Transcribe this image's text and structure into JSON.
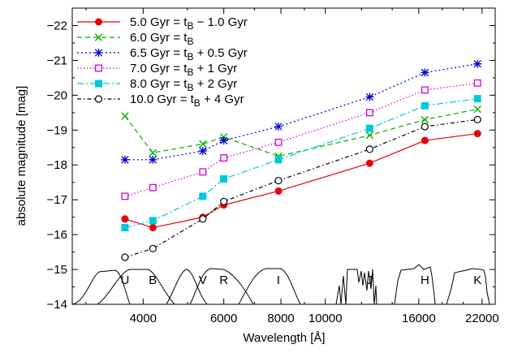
{
  "chart_data": {
    "type": "line",
    "xlabel": "Wavelength [Å]",
    "ylabel": "absolute magnitude [mag]",
    "xscale": "log",
    "xlim": [
      2800,
      23500
    ],
    "ylim": [
      -14,
      -22.5
    ],
    "y_inverted": true,
    "grid": false,
    "legend_position": "top-left",
    "x_ticks": [
      4000,
      6000,
      8000,
      10000,
      16000,
      22000
    ],
    "x_tick_labels": [
      "4000",
      "6000",
      "8000",
      "10000",
      "16000",
      "22000"
    ],
    "y_ticks": [
      -14,
      -15,
      -16,
      -17,
      -18,
      -19,
      -20,
      -21,
      -22
    ],
    "y_tick_labels": [
      "−14",
      "−15",
      "−16",
      "−17",
      "−18",
      "−19",
      "−20",
      "−21",
      "−22"
    ],
    "bands": [
      "U",
      "B",
      "V",
      "R",
      "I",
      "J",
      "H",
      "K"
    ],
    "x": [
      3650,
      4200,
      5400,
      6000,
      7900,
      12500,
      16500,
      21500
    ],
    "series": [
      {
        "name_main": "5.0 Gyr = t",
        "name_sub": "B",
        "name_suffix": " − 1.0 Gyr",
        "color": "#e8000b",
        "dash": "",
        "marker": "filled-circle",
        "values": [
          -16.45,
          -16.2,
          -16.5,
          -16.85,
          -17.25,
          -18.05,
          -18.7,
          -18.9
        ]
      },
      {
        "name_main": "6.0 Gyr = t",
        "name_sub": "B",
        "name_suffix": "",
        "color": "#00b000",
        "dash": "6,4",
        "marker": "x",
        "values": [
          -19.4,
          -18.35,
          -18.6,
          -18.8,
          -18.25,
          -18.85,
          -19.3,
          -19.6
        ]
      },
      {
        "name_main": "6.5 Gyr = t",
        "name_sub": "B",
        "name_suffix": " + 0.5 Gyr",
        "color": "#0000d0",
        "dash": "2,3",
        "marker": "star",
        "values": [
          -18.15,
          -18.15,
          -18.4,
          -18.7,
          -19.1,
          -19.95,
          -20.65,
          -20.9
        ]
      },
      {
        "name_main": "7.0 Gyr = t",
        "name_sub": "B",
        "name_suffix": " + 1 Gyr",
        "color": "#d000d0",
        "dash": "1.5,2.5",
        "marker": "open-square",
        "values": [
          -17.1,
          -17.35,
          -17.8,
          -18.2,
          -18.65,
          -19.5,
          -20.15,
          -20.35
        ]
      },
      {
        "name_main": "8.0 Gyr = t",
        "name_sub": "B",
        "name_suffix": " + 2 Gyr",
        "color": "#00c8d8",
        "dash": "8,3,2,3",
        "marker": "filled-square",
        "values": [
          -16.2,
          -16.4,
          -17.1,
          -17.6,
          -18.15,
          -19.05,
          -19.7,
          -19.9
        ]
      },
      {
        "name_main": "10.0 Gyr = t",
        "name_sub": "B",
        "name_suffix": " + 4 Gyr",
        "color": "#000000",
        "dash": "5,3,1.5,3",
        "marker": "open-circle",
        "values": [
          -15.35,
          -15.6,
          -16.45,
          -16.95,
          -17.55,
          -18.45,
          -19.1,
          -19.3
        ]
      }
    ]
  }
}
